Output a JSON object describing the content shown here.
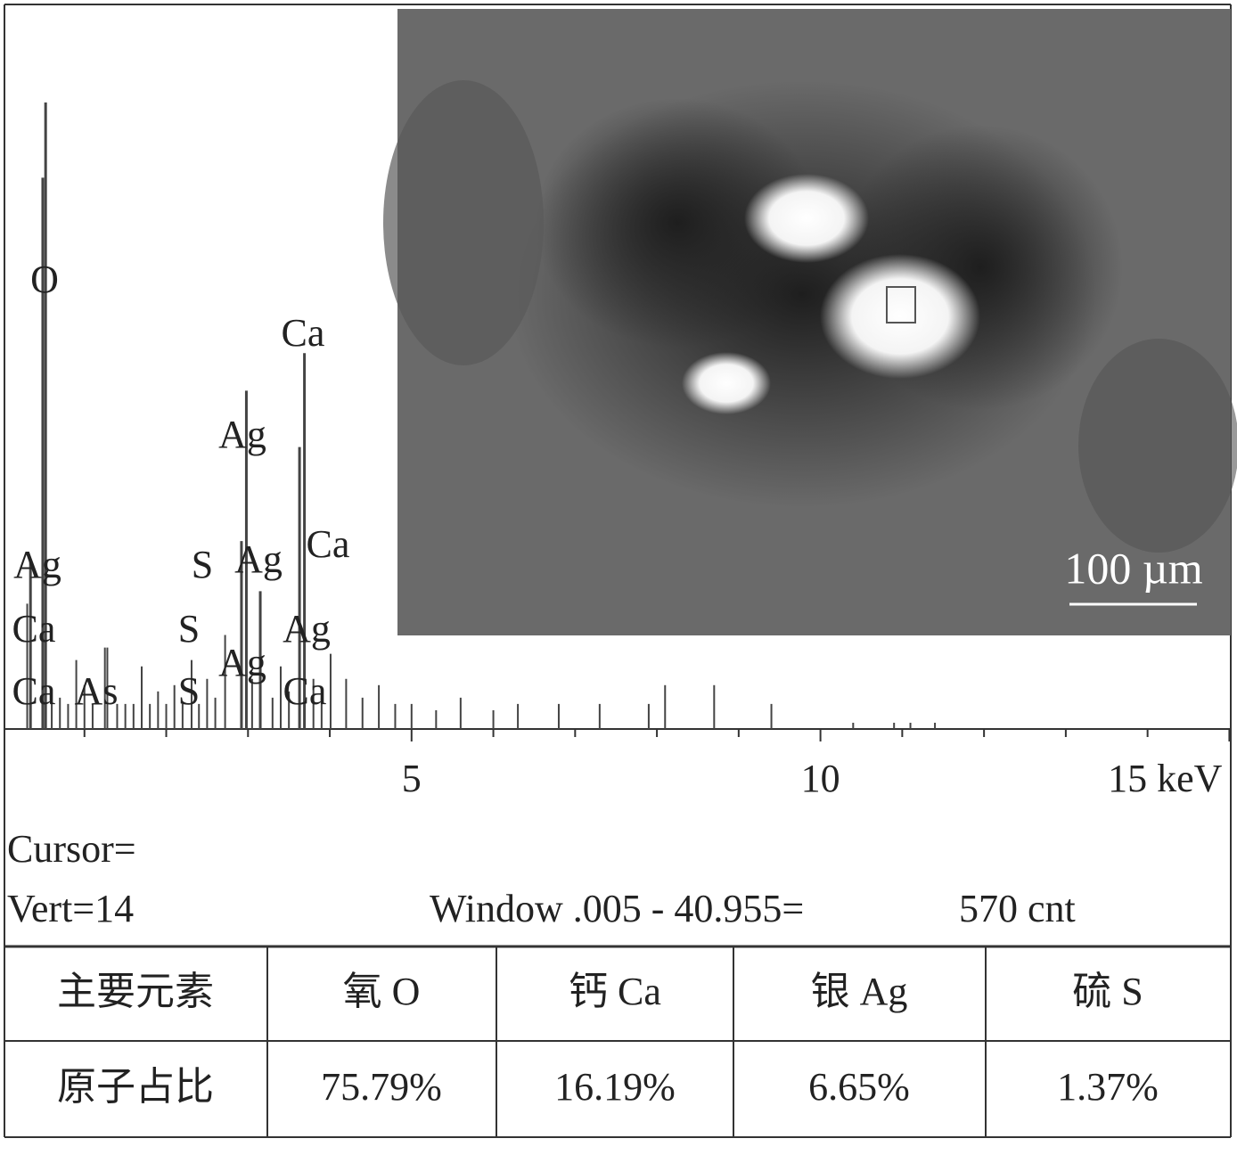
{
  "spectrum": {
    "type": "spectrum",
    "x": [
      0.3,
      0.34,
      0.49,
      0.525,
      0.6,
      0.7,
      0.8,
      0.9,
      1.0,
      1.1,
      1.25,
      1.28,
      1.4,
      1.5,
      1.6,
      1.7,
      1.8,
      1.9,
      2.0,
      2.1,
      2.2,
      2.31,
      2.4,
      2.5,
      2.6,
      2.72,
      2.92,
      2.98,
      3.05,
      3.15,
      3.3,
      3.4,
      3.5,
      3.63,
      3.69,
      3.8,
      3.9,
      4.01,
      4.2,
      4.4,
      4.6,
      4.8,
      5.0,
      5.3,
      5.6,
      6.0,
      6.3,
      6.8,
      7.3,
      7.9,
      8.1,
      8.7,
      9.4,
      10.4,
      10.9,
      11.1,
      11.4
    ],
    "values": [
      20,
      27,
      88,
      100,
      4,
      5,
      4,
      11,
      7,
      4,
      13,
      13,
      4,
      4,
      4,
      10,
      4,
      6,
      4,
      7,
      4,
      11,
      4,
      8,
      5,
      15,
      30,
      54,
      8,
      22,
      5,
      10,
      6,
      45,
      60,
      8,
      5,
      12,
      8,
      5,
      7,
      4,
      4,
      3,
      5,
      3,
      4,
      4,
      4,
      4,
      7,
      7,
      4,
      1,
      1,
      1,
      1
    ],
    "xlim": [
      0,
      15.05
    ],
    "ylim": [
      0,
      100
    ],
    "xticks": [
      5,
      10,
      {
        "value": 15,
        "label": "15 keV"
      }
    ],
    "minor_xticks": [
      1,
      2,
      3,
      4,
      6,
      7,
      8,
      9,
      11,
      12,
      13,
      14
    ],
    "peak_labels": [
      "O",
      "Ca",
      "Ag",
      "Ag",
      "S",
      "Ag",
      "Ca",
      "Ca",
      "S",
      "Ag",
      "Ag",
      "Ca",
      "As",
      "S",
      "Ca"
    ]
  },
  "image": {
    "scale_bar": "100 µm"
  },
  "readout": {
    "cursor": "Cursor=",
    "vert": "Vert=14",
    "window": "Window .005 - 40.955=",
    "counts": "570 cnt"
  },
  "table": {
    "header": [
      "主要元素",
      "氧 O",
      "钙 Ca",
      "银 Ag",
      "硫 S"
    ],
    "rows": [
      [
        "原子占比",
        "75.79%",
        "16.19%",
        "6.65%",
        "1.37%"
      ]
    ]
  }
}
